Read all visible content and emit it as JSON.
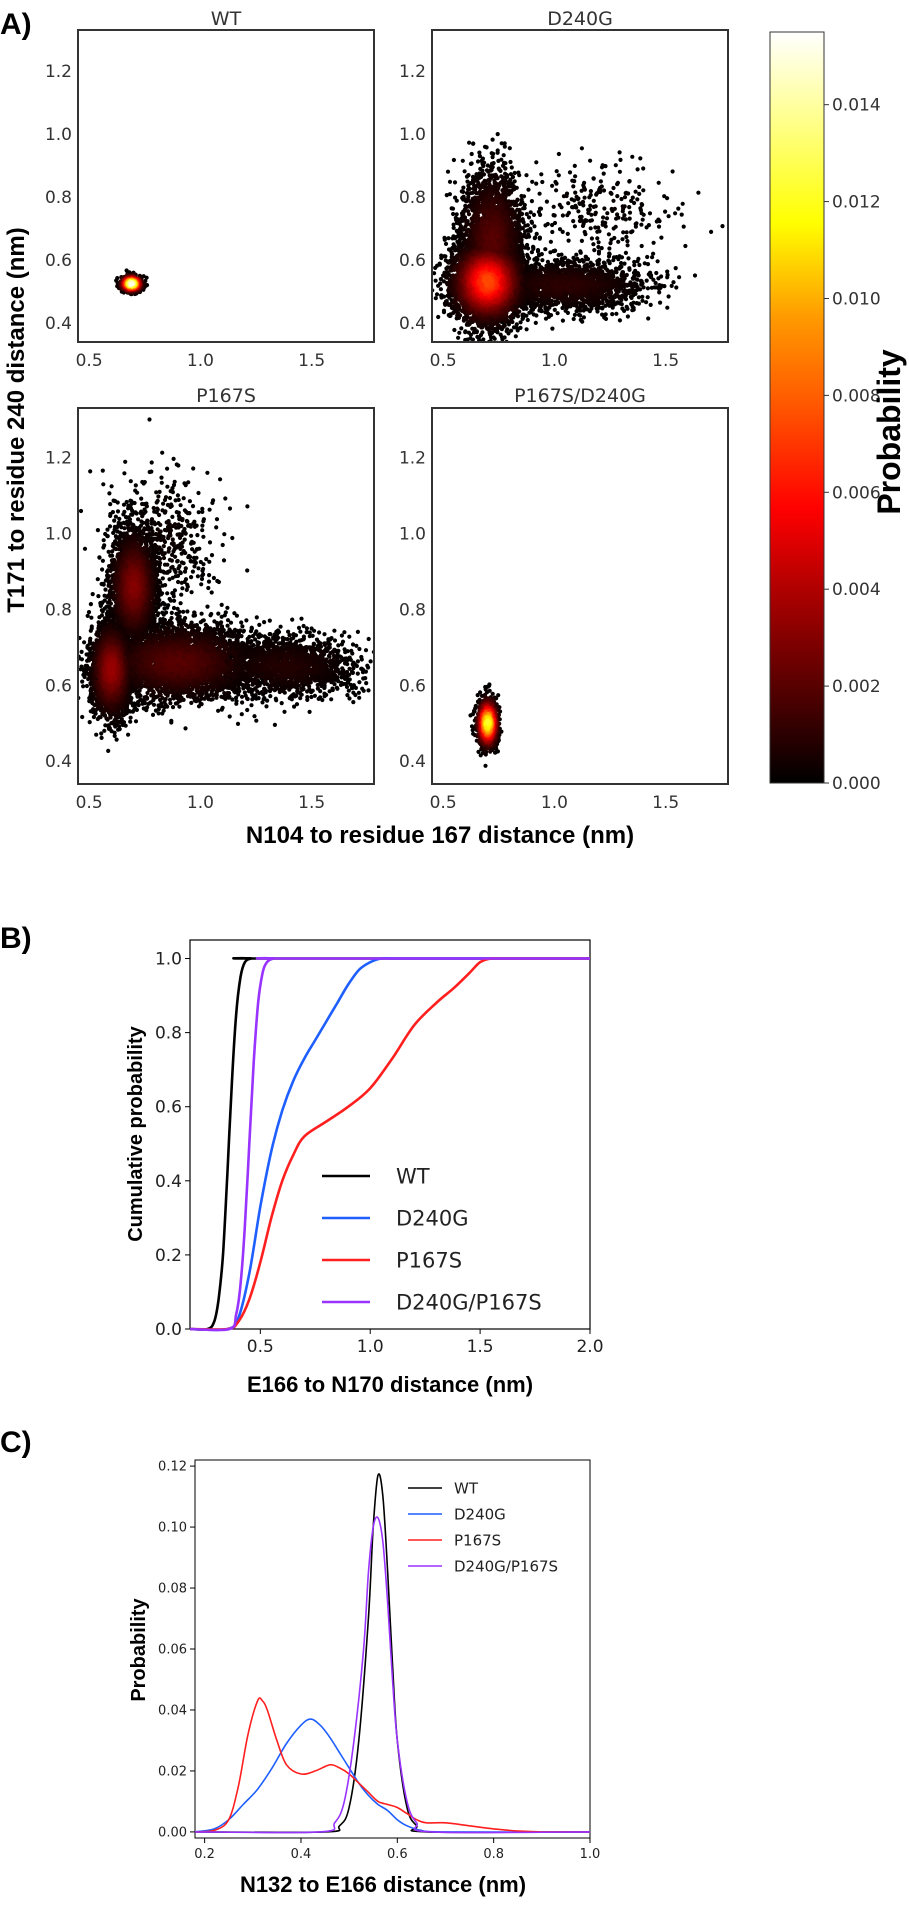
{
  "figure": {
    "panel_labels": [
      "A)",
      "B)",
      "C)"
    ]
  },
  "chart_data": [
    {
      "type": "scatter",
      "panel": "A)",
      "subplots": [
        {
          "title": "WT",
          "clusters": [
            {
              "x": 0.69,
              "y": 0.525,
              "sx": 0.022,
              "sy": 0.012,
              "n": 900,
              "peak": 0.0155
            }
          ]
        },
        {
          "title": "D240G",
          "clusters": [
            {
              "x": 0.7,
              "y": 0.53,
              "sx": 0.075,
              "sy": 0.06,
              "n": 4500,
              "peak": 0.0075
            },
            {
              "x": 0.72,
              "y": 0.66,
              "sx": 0.07,
              "sy": 0.11,
              "n": 2500,
              "peak": 0.002
            },
            {
              "x": 1.05,
              "y": 0.52,
              "sx": 0.18,
              "sy": 0.04,
              "n": 1800,
              "peak": 0.001
            },
            {
              "x": 1.2,
              "y": 0.76,
              "sx": 0.18,
              "sy": 0.08,
              "n": 260,
              "peak": 0.0002
            }
          ]
        },
        {
          "title": "P167S",
          "clusters": [
            {
              "x": 0.6,
              "y": 0.64,
              "sx": 0.045,
              "sy": 0.06,
              "n": 2600,
              "peak": 0.0035
            },
            {
              "x": 0.7,
              "y": 0.86,
              "sx": 0.05,
              "sy": 0.07,
              "n": 2400,
              "peak": 0.003
            },
            {
              "x": 0.9,
              "y": 0.66,
              "sx": 0.17,
              "sy": 0.05,
              "n": 3500,
              "peak": 0.002
            },
            {
              "x": 1.38,
              "y": 0.65,
              "sx": 0.16,
              "sy": 0.04,
              "n": 1600,
              "peak": 0.0008
            },
            {
              "x": 0.82,
              "y": 0.98,
              "sx": 0.12,
              "sy": 0.09,
              "n": 500,
              "peak": 0.0003
            }
          ]
        },
        {
          "title": "P167S/D240G",
          "clusters": [
            {
              "x": 0.7,
              "y": 0.5,
              "sx": 0.022,
              "sy": 0.03,
              "n": 1300,
              "peak": 0.0125
            }
          ]
        }
      ],
      "xlabel": "N104 to residue 167 distance (nm)",
      "ylabel": "T171 to residue 240 distance (nm)",
      "xlim": [
        0.45,
        1.78
      ],
      "ylim": [
        0.34,
        1.33
      ],
      "xticks": [
        0.5,
        1.0,
        1.5
      ],
      "yticks": [
        0.4,
        0.6,
        0.8,
        1.0,
        1.2
      ],
      "colorbar": {
        "label": "Probability",
        "ticks": [
          0.0,
          0.002,
          0.004,
          0.006,
          0.008,
          0.01,
          0.012,
          0.014
        ],
        "tick_labels": [
          "0.000",
          "0.002",
          "0.004",
          "0.006",
          "0.008",
          "0.010",
          "0.012",
          "0.014"
        ],
        "range": [
          0,
          0.0155
        ],
        "colormap": "hot"
      },
      "grid": false
    },
    {
      "type": "line",
      "panel": "B)",
      "xlabel": "E166 to N170 distance (nm)",
      "ylabel": "Cumulative probability",
      "xlim": [
        0.18,
        2.0
      ],
      "ylim": [
        0.0,
        1.05
      ],
      "xticks": [
        0.5,
        1.0,
        1.5,
        2.0
      ],
      "yticks": [
        0.0,
        0.2,
        0.4,
        0.6,
        0.8,
        1.0
      ],
      "legend": "center-right",
      "series": [
        {
          "name": "WT",
          "color": "#000000",
          "x": [
            0.18,
            0.26,
            0.29,
            0.31,
            0.33,
            0.35,
            0.37,
            0.39,
            0.41,
            0.43,
            0.46,
            0.5,
            2.0
          ],
          "y": [
            0,
            0,
            0.02,
            0.08,
            0.2,
            0.42,
            0.66,
            0.85,
            0.95,
            0.99,
            1.0,
            1.0,
            1.0
          ]
        },
        {
          "name": "D240G",
          "color": "#1f5fff",
          "x": [
            0.18,
            0.35,
            0.4,
            0.45,
            0.5,
            0.55,
            0.6,
            0.65,
            0.7,
            0.75,
            0.8,
            0.85,
            0.9,
            0.95,
            1.0,
            1.05,
            1.1,
            1.2,
            2.0
          ],
          "y": [
            0,
            0,
            0.03,
            0.15,
            0.33,
            0.48,
            0.59,
            0.67,
            0.73,
            0.78,
            0.83,
            0.88,
            0.93,
            0.97,
            0.99,
            1.0,
            1.0,
            1.0,
            1.0
          ]
        },
        {
          "name": "P167S",
          "color": "#ff1f1f",
          "x": [
            0.18,
            0.35,
            0.4,
            0.45,
            0.5,
            0.55,
            0.6,
            0.65,
            0.7,
            0.8,
            0.9,
            1.0,
            1.1,
            1.2,
            1.3,
            1.38,
            1.45,
            1.5,
            1.55,
            1.6,
            2.0
          ],
          "y": [
            0,
            0,
            0.02,
            0.08,
            0.18,
            0.3,
            0.4,
            0.47,
            0.52,
            0.56,
            0.6,
            0.65,
            0.73,
            0.82,
            0.88,
            0.92,
            0.96,
            0.99,
            1.0,
            1.0,
            1.0
          ]
        },
        {
          "name": "D240G/P167S",
          "color": "#9933ff",
          "x": [
            0.18,
            0.36,
            0.39,
            0.41,
            0.43,
            0.45,
            0.47,
            0.49,
            0.51,
            0.53,
            0.56,
            0.6,
            2.0
          ],
          "y": [
            0,
            0,
            0.04,
            0.12,
            0.28,
            0.5,
            0.72,
            0.88,
            0.96,
            0.99,
            1.0,
            1.0,
            1.0
          ]
        }
      ]
    },
    {
      "type": "line",
      "panel": "C)",
      "xlabel": "N132 to E166 distance (nm)",
      "ylabel": "Probability",
      "xlim": [
        0.18,
        1.0
      ],
      "ylim": [
        -0.002,
        0.122
      ],
      "xticks": [
        0.2,
        0.4,
        0.6,
        0.8,
        1.0
      ],
      "yticks": [
        0.0,
        0.02,
        0.04,
        0.06,
        0.08,
        0.1,
        0.12
      ],
      "legend": "top-right",
      "series": [
        {
          "name": "WT",
          "color": "#000000",
          "x": [
            0.18,
            0.45,
            0.48,
            0.5,
            0.52,
            0.54,
            0.55,
            0.56,
            0.57,
            0.58,
            0.59,
            0.6,
            0.62,
            0.64,
            0.66,
            1.0
          ],
          "y": [
            0,
            0,
            0.002,
            0.008,
            0.03,
            0.07,
            0.1,
            0.117,
            0.11,
            0.085,
            0.055,
            0.03,
            0.008,
            0.002,
            0,
            0
          ]
        },
        {
          "name": "D240G",
          "color": "#1f5fff",
          "x": [
            0.18,
            0.22,
            0.25,
            0.28,
            0.31,
            0.34,
            0.37,
            0.4,
            0.42,
            0.44,
            0.46,
            0.48,
            0.5,
            0.52,
            0.54,
            0.56,
            0.58,
            0.6,
            0.62,
            0.65,
            0.7,
            1.0
          ],
          "y": [
            0,
            0.001,
            0.004,
            0.009,
            0.014,
            0.021,
            0.029,
            0.035,
            0.037,
            0.035,
            0.031,
            0.026,
            0.021,
            0.016,
            0.012,
            0.009,
            0.007,
            0.004,
            0.002,
            0.0005,
            0,
            0
          ]
        },
        {
          "name": "P167S",
          "color": "#ff1f1f",
          "x": [
            0.18,
            0.22,
            0.25,
            0.27,
            0.29,
            0.31,
            0.32,
            0.33,
            0.35,
            0.37,
            0.4,
            0.43,
            0.46,
            0.48,
            0.5,
            0.52,
            0.54,
            0.56,
            0.58,
            0.6,
            0.62,
            0.64,
            0.66,
            0.7,
            0.75,
            0.8,
            0.85,
            0.9,
            1.0
          ],
          "y": [
            0,
            0.0005,
            0.004,
            0.015,
            0.032,
            0.043,
            0.043,
            0.04,
            0.03,
            0.022,
            0.019,
            0.02,
            0.022,
            0.021,
            0.019,
            0.016,
            0.013,
            0.01,
            0.009,
            0.008,
            0.006,
            0.004,
            0.003,
            0.003,
            0.002,
            0.001,
            0.0003,
            0,
            0
          ]
        },
        {
          "name": "D240G/P167S",
          "color": "#9933ff",
          "x": [
            0.18,
            0.44,
            0.47,
            0.49,
            0.51,
            0.53,
            0.54,
            0.55,
            0.56,
            0.57,
            0.58,
            0.59,
            0.6,
            0.62,
            0.64,
            0.67,
            1.0
          ],
          "y": [
            0,
            0,
            0.003,
            0.01,
            0.03,
            0.06,
            0.085,
            0.1,
            0.103,
            0.095,
            0.075,
            0.05,
            0.03,
            0.01,
            0.003,
            0,
            0
          ]
        }
      ]
    }
  ]
}
